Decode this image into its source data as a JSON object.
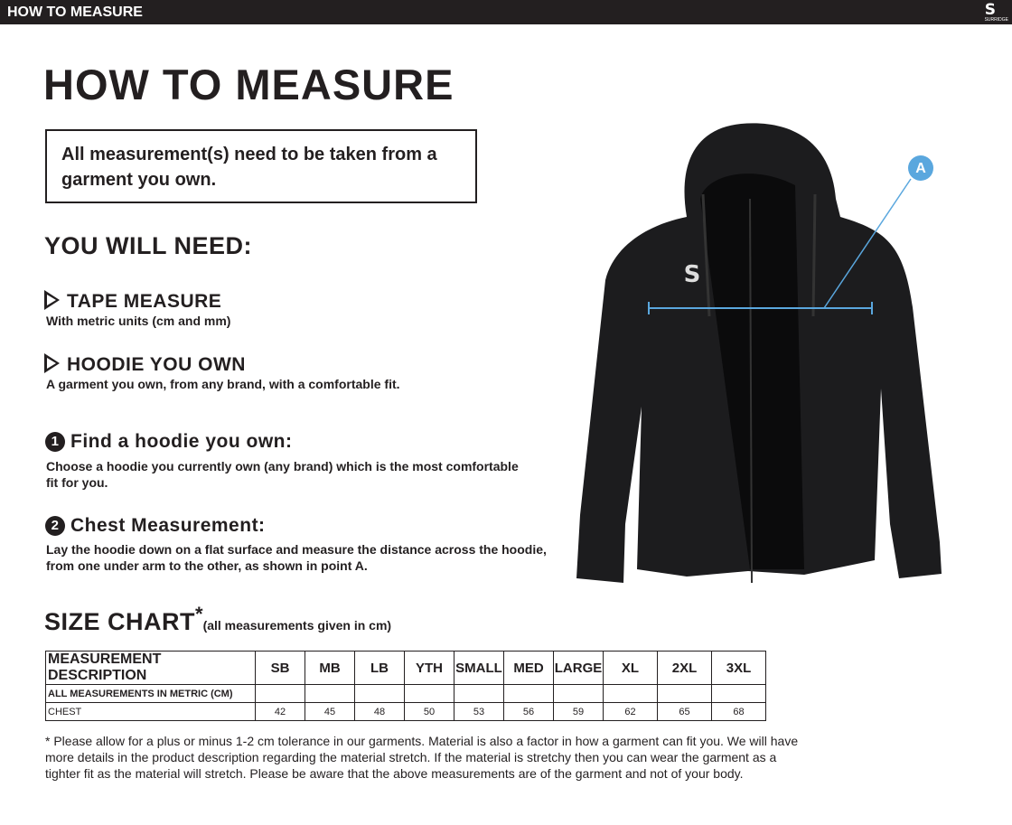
{
  "header": {
    "title": "HOW TO MEASURE",
    "logo": "SURRIDGE"
  },
  "main_title": "HOW TO MEASURE",
  "notice": "All measurement(s) need to be taken from a garment you own.",
  "need": {
    "title": "YOU WILL NEED:",
    "items": [
      {
        "title": "TAPE MEASURE",
        "text": "With metric units (cm and mm)"
      },
      {
        "title": "HOODIE YOU OWN",
        "text": "A garment you own, from any brand, with a comfortable fit."
      }
    ]
  },
  "steps": [
    {
      "number": "1",
      "title": "Find a hoodie you own:",
      "text": "Choose a hoodie you currently own (any brand) which is the most comfortable fit for you."
    },
    {
      "number": "2",
      "title": "Chest Measurement:",
      "text": "Lay the hoodie down on a flat surface and measure the distance across the hoodie, from one under arm to the other, as shown in point A."
    }
  ],
  "image": {
    "point_label": "A"
  },
  "size_chart": {
    "title": "SIZE CHART",
    "asterisk": "*",
    "subtitle": "(all measurements given in cm)",
    "table": {
      "columns": [
        "MEASUREMENT DESCRIPTION",
        "SB",
        "MB",
        "LB",
        "YTH",
        "SMALL",
        "MED",
        "LARGE",
        "XL",
        "2XL",
        "3XL"
      ],
      "rows": [
        [
          "ALL MEASUREMENTS IN METRIC (CM)"
        ],
        [
          "CHEST",
          42,
          45,
          48,
          50,
          53,
          56,
          59,
          62,
          65,
          68
        ]
      ]
    }
  },
  "footnote": "* Please allow for a plus or minus 1-2 cm tolerance in our garments. Material is also a factor in how a garment can fit you. We will have more details in the product description regarding the material stretch.  If the material is stretchy then you can wear the garment as a tighter fit as the material will stretch.  Please be aware that the above measurements are of the garment and not of your body."
}
